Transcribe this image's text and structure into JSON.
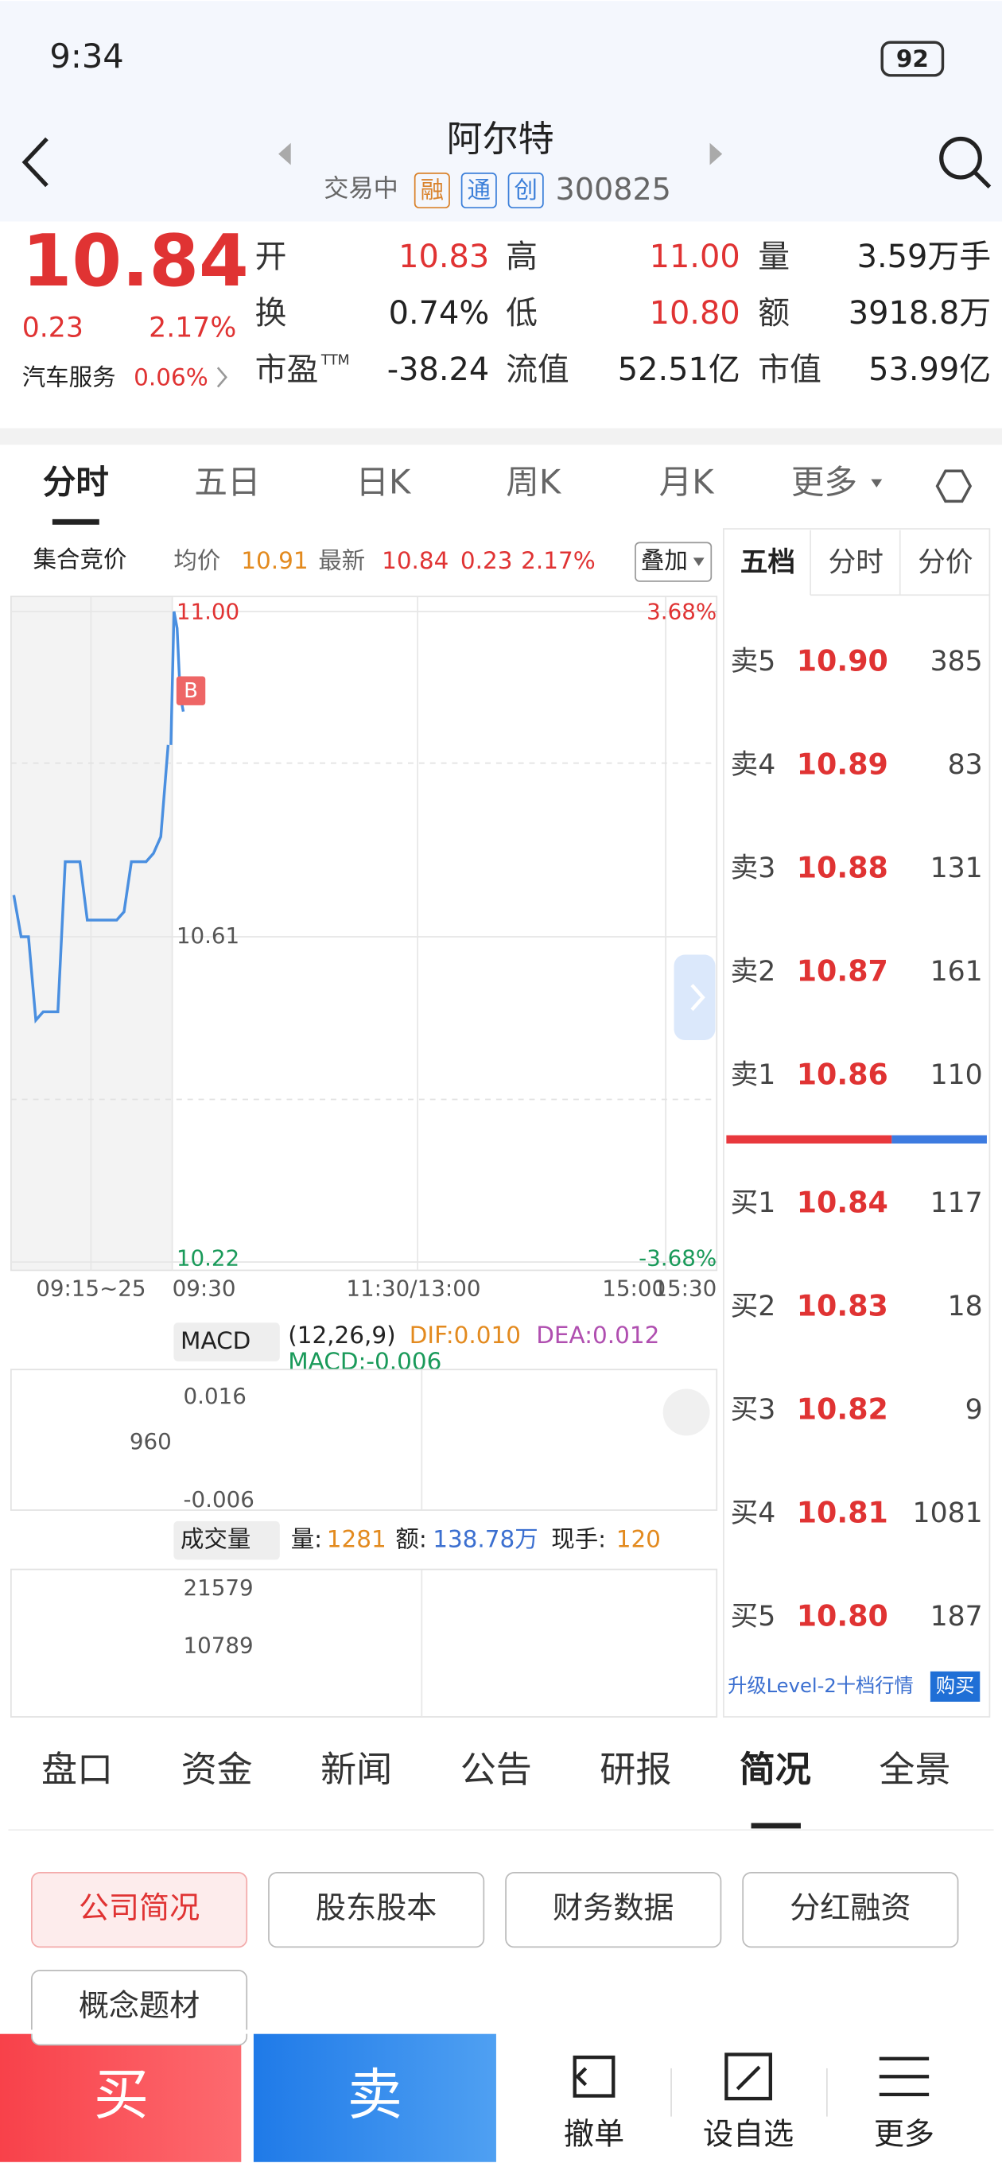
{
  "status_bar": {
    "time": "9:34",
    "battery": "92"
  },
  "header": {
    "title": "阿尔特",
    "status": "交易中",
    "badges": [
      "融",
      "通",
      "创"
    ],
    "code": "300825"
  },
  "quote": {
    "price": "10.84",
    "change": "0.23",
    "change_pct": "2.17%",
    "sector": "汽车服务",
    "sector_pct": "0.06%",
    "stats": [
      {
        "label": "开",
        "value": "10.83"
      },
      {
        "label": "高",
        "value": "11.00"
      },
      {
        "label": "量",
        "value": "3.59万手"
      },
      {
        "label": "换",
        "value": "0.74%"
      },
      {
        "label": "低",
        "value": "10.80"
      },
      {
        "label": "额",
        "value": "3918.8万"
      },
      {
        "label": "市盈",
        "sup": "TTM",
        "value": "-38.24"
      },
      {
        "label": "流值",
        "value": "52.51亿"
      },
      {
        "label": "市值",
        "value": "53.99亿"
      }
    ]
  },
  "chart_tabs": [
    "分时",
    "五日",
    "日K",
    "周K",
    "月K",
    "更多"
  ],
  "info_bar": {
    "auction": "集合竞价",
    "avg_label": "均价",
    "avg": "10.91",
    "latest_label": "最新",
    "latest": "10.84",
    "change": "0.23",
    "pct": "2.17%",
    "overlay": "叠加"
  },
  "intraday_chart": {
    "ylim": [
      10.22,
      11.0
    ],
    "yticks": [
      {
        "value": 11.0,
        "label": "11.00"
      },
      10.61,
      10.22
    ],
    "pct_ticks": [
      {
        "value": 11.0,
        "label": "3.68%"
      },
      {
        "value": 10.22,
        "label": "-3.68%"
      }
    ],
    "x_labels": [
      "09:15~25",
      "09:30",
      "11:30/13:00",
      "15:00",
      "15:30"
    ],
    "marker": "B",
    "auction_prices": [
      10.66,
      10.61,
      10.61,
      10.51,
      10.52,
      10.52,
      10.52,
      10.7,
      10.7,
      10.7,
      10.63,
      10.63,
      10.63,
      10.63,
      10.63,
      10.64,
      10.7,
      10.7,
      10.7,
      10.71,
      10.73,
      10.84
    ],
    "prices": [
      10.84,
      11.0,
      10.98,
      10.9,
      10.88
    ],
    "color": "#4a8fe0"
  },
  "macd": {
    "name": "MACD",
    "params": "(12,26,9)",
    "dif": "DIF:0.010",
    "dea": "DEA:0.012",
    "macd": "MACD:-0.006",
    "top": "0.016",
    "bottom": "-0.006",
    "level": "960"
  },
  "volume": {
    "name": "成交量",
    "vol_label": "量:",
    "vol": "1281",
    "amount_label": "额:",
    "amount": "138.78万",
    "hand_label": "现手:",
    "hand": "120",
    "top": "21579",
    "mid": "10789"
  },
  "order_book": {
    "tabs": [
      "五档",
      "分时",
      "分价"
    ],
    "asks": [
      {
        "label": "卖5",
        "price": "10.90",
        "volume": "385"
      },
      {
        "label": "卖4",
        "price": "10.89",
        "volume": "83"
      },
      {
        "label": "卖3",
        "price": "10.88",
        "volume": "131"
      },
      {
        "label": "卖2",
        "price": "10.87",
        "volume": "161"
      },
      {
        "label": "卖1",
        "price": "10.86",
        "volume": "110"
      }
    ],
    "bids": [
      {
        "label": "买1",
        "price": "10.84",
        "volume": "117"
      },
      {
        "label": "买2",
        "price": "10.83",
        "volume": "18"
      },
      {
        "label": "买3",
        "price": "10.82",
        "volume": "9"
      },
      {
        "label": "买4",
        "price": "10.81",
        "volume": "1081"
      },
      {
        "label": "买5",
        "price": "10.80",
        "volume": "187"
      }
    ],
    "upgrade": "升级Level-2十档行情",
    "buy": "购买"
  },
  "info_tabs": [
    "盘口",
    "资金",
    "新闻",
    "公告",
    "研报",
    "简况",
    "全景"
  ],
  "profile_buttons": [
    "公司简况",
    "股东股本",
    "财务数据",
    "分红融资",
    "概念题材"
  ],
  "bottom_bar": {
    "buy": "买",
    "sell": "卖",
    "actions": [
      "撤单",
      "设自选",
      "更多"
    ]
  }
}
